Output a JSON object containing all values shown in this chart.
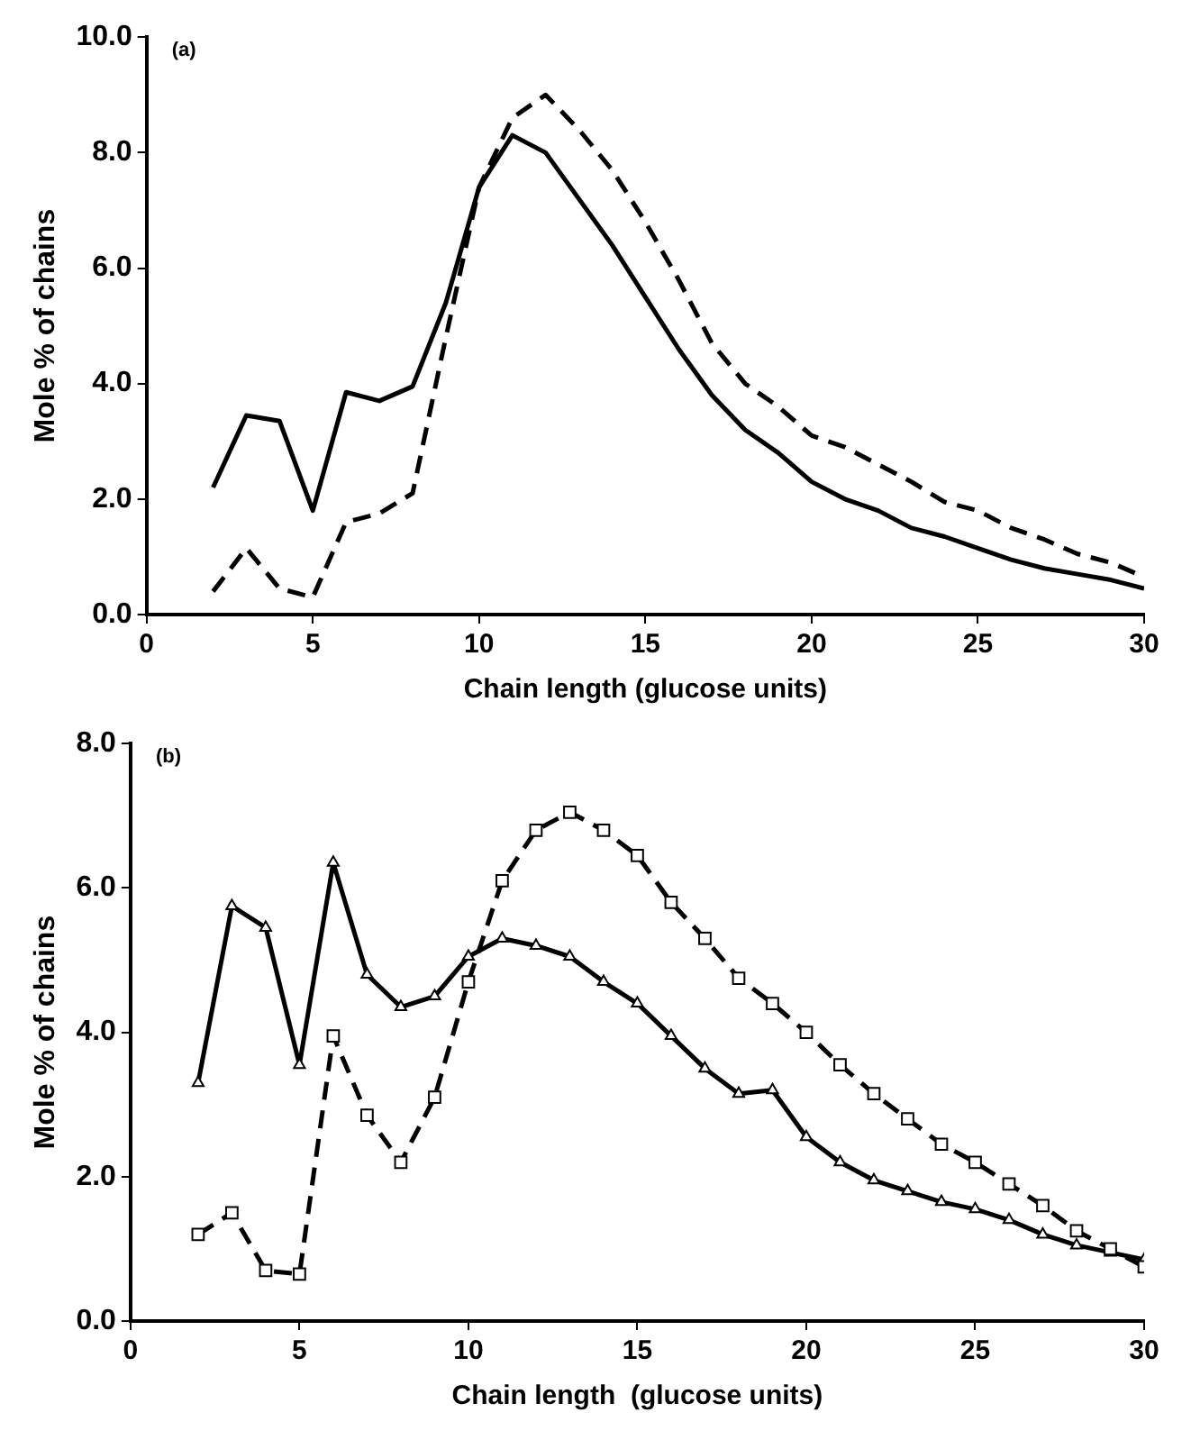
{
  "chart_data": [
    {
      "type": "line",
      "annotations": [
        "(a)"
      ],
      "xlabel": "Chain length (glucose units)",
      "ylabel": "Mole % of chains",
      "x": [
        2,
        3,
        4,
        5,
        6,
        7,
        8,
        9,
        10,
        11,
        12,
        13,
        14,
        15,
        16,
        17,
        18,
        19,
        20,
        21,
        22,
        23,
        24,
        25,
        26,
        27,
        28,
        29,
        30
      ],
      "series": [
        {
          "color": "#000000",
          "line_style": "solid",
          "values": [
            2.2,
            3.45,
            3.35,
            1.8,
            3.85,
            3.7,
            3.95,
            5.4,
            7.4,
            8.3,
            8.0,
            7.2,
            6.4,
            5.5,
            4.6,
            3.8,
            3.2,
            2.8,
            2.3,
            2.0,
            1.8,
            1.5,
            1.35,
            1.15,
            0.95,
            0.8,
            0.7,
            0.6,
            0.45
          ]
        },
        {
          "color": "#000000",
          "line_style": "dashed",
          "values": [
            0.4,
            1.15,
            0.45,
            0.3,
            1.6,
            1.75,
            2.1,
            4.8,
            7.4,
            8.6,
            9.0,
            8.4,
            7.7,
            6.8,
            5.8,
            4.7,
            4.0,
            3.6,
            3.1,
            2.9,
            2.6,
            2.3,
            1.95,
            1.8,
            1.5,
            1.3,
            1.05,
            0.9,
            0.65
          ]
        }
      ],
      "xlim": [
        0,
        30
      ],
      "xticks": [
        0,
        5,
        10,
        15,
        20,
        25,
        30
      ],
      "ylim": [
        0,
        10
      ],
      "yticks": [
        {
          "value": 0,
          "label": "0.0"
        },
        {
          "value": 2,
          "label": "2.0"
        },
        {
          "value": 4,
          "label": "4.0"
        },
        {
          "value": 6,
          "label": "6.0"
        },
        {
          "value": 8,
          "label": "8.0"
        },
        {
          "value": 10,
          "label": "10.0"
        }
      ],
      "grid": false,
      "legend": false,
      "marker": "none"
    },
    {
      "type": "line",
      "annotations": [
        "(b)"
      ],
      "xlabel": "Chain length  (glucose units)",
      "ylabel": "Mole % of chains",
      "x": [
        2,
        3,
        4,
        5,
        6,
        7,
        8,
        9,
        10,
        11,
        12,
        13,
        14,
        15,
        16,
        17,
        18,
        19,
        20,
        21,
        22,
        23,
        24,
        25,
        26,
        27,
        28,
        29,
        30
      ],
      "series": [
        {
          "color": "#000000",
          "line_style": "solid",
          "marker": "triangle",
          "values": [
            3.3,
            5.75,
            5.45,
            3.55,
            6.35,
            4.8,
            4.35,
            4.5,
            5.05,
            5.3,
            5.2,
            5.05,
            4.7,
            4.4,
            3.95,
            3.5,
            3.15,
            3.2,
            2.55,
            2.2,
            1.95,
            1.8,
            1.65,
            1.55,
            1.4,
            1.2,
            1.05,
            0.95,
            0.85
          ]
        },
        {
          "color": "#000000",
          "line_style": "dashed",
          "marker": "square",
          "values": [
            1.2,
            1.5,
            0.7,
            0.65,
            3.95,
            2.85,
            2.2,
            3.1,
            4.7,
            6.1,
            6.8,
            7.05,
            6.8,
            6.45,
            5.8,
            5.3,
            4.75,
            4.4,
            4.0,
            3.55,
            3.15,
            2.8,
            2.45,
            2.2,
            1.9,
            1.6,
            1.25,
            1.0,
            0.75
          ]
        }
      ],
      "xlim": [
        0,
        30
      ],
      "xticks": [
        0,
        5,
        10,
        15,
        20,
        25,
        30
      ],
      "ylim": [
        0,
        8
      ],
      "yticks": [
        {
          "value": 0,
          "label": "0.0"
        },
        {
          "value": 2,
          "label": "2.0"
        },
        {
          "value": 4,
          "label": "4.0"
        },
        {
          "value": 6,
          "label": "6.0"
        },
        {
          "value": 8,
          "label": "8.0"
        }
      ],
      "grid": false,
      "legend": false
    }
  ]
}
